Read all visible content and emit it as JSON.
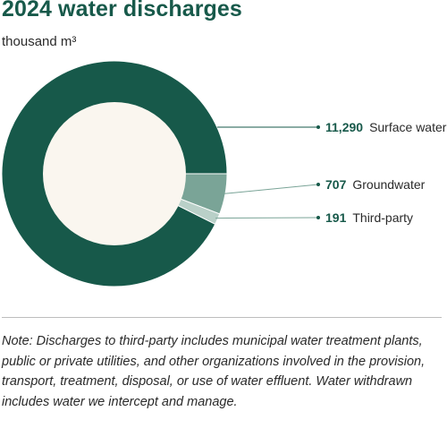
{
  "chart_data": {
    "type": "pie",
    "title": "2024 water discharges",
    "subtitle": "thousand m³",
    "slices": [
      {
        "label": "Surface water",
        "value": 11290,
        "value_label": "11,290",
        "color": "#17594a"
      },
      {
        "label": "Groundwater",
        "value": 707,
        "value_label": "707",
        "color": "#7aa497"
      },
      {
        "label": "Third-party",
        "value": 191,
        "value_label": "191",
        "color": "#b9d0c8"
      }
    ],
    "hole_color": "#faf6ef",
    "donut": true
  },
  "note": "Note: Discharges to third-party includes municipal water treatment plants, public or private utilities, and other organizations involved in the provision, transport, treatment, disposal, or use of water effluent. Water withdrawn includes water we intercept and manage."
}
